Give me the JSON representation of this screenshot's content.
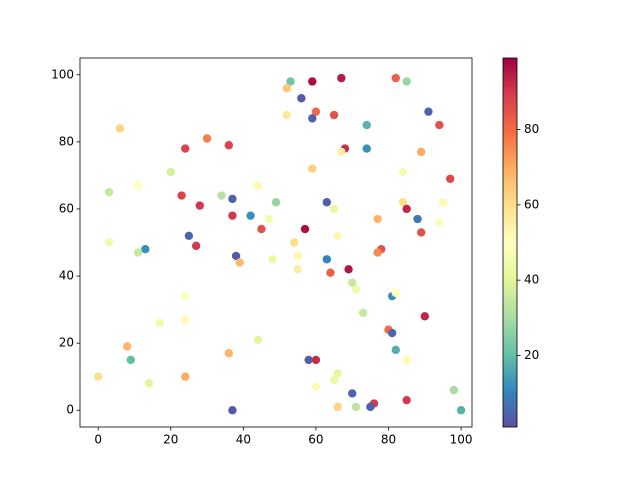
{
  "chart_data": {
    "type": "scatter",
    "colormap": "Spectral_r",
    "x": [
      53,
      59,
      67,
      82,
      85,
      52,
      56,
      60,
      65,
      59,
      52,
      91,
      94,
      74,
      6,
      30,
      24,
      36,
      68,
      67,
      74,
      89,
      59,
      84,
      20,
      11,
      44,
      3,
      97,
      23,
      34,
      37,
      49,
      63,
      84,
      95,
      28,
      65,
      85,
      37,
      42,
      47,
      77,
      88,
      94,
      45,
      57,
      89,
      25,
      3,
      54,
      27,
      13,
      11,
      78,
      77,
      55,
      38,
      48,
      63,
      66,
      39,
      69,
      64,
      55,
      70,
      71,
      81,
      24,
      82,
      73,
      90,
      24,
      17,
      80,
      81,
      44,
      8,
      82,
      36,
      9,
      58,
      60,
      85,
      66,
      0,
      24,
      65,
      14,
      60,
      98,
      70,
      85,
      76,
      75,
      66,
      71,
      37,
      100
    ],
    "y": [
      98,
      98,
      99,
      99,
      98,
      96,
      93,
      89,
      88,
      87,
      88,
      89,
      85,
      85,
      84,
      81,
      78,
      79,
      78,
      77,
      78,
      77,
      72,
      71,
      71,
      67,
      67,
      65,
      69,
      64,
      64,
      63,
      62,
      62,
      62,
      62,
      61,
      60,
      60,
      58,
      58,
      57,
      57,
      57,
      56,
      54,
      54,
      53,
      52,
      50,
      50,
      49,
      48,
      47,
      48,
      47,
      46,
      46,
      45,
      45,
      52,
      44,
      42,
      41,
      42,
      38,
      36,
      34,
      34,
      35,
      29,
      28,
      27,
      26,
      24,
      23,
      21,
      19,
      18,
      17,
      15,
      15,
      15,
      15,
      11,
      10,
      10,
      9,
      8,
      7,
      6,
      5,
      3,
      2,
      1,
      1,
      1,
      0,
      0
    ],
    "c": [
      22,
      97,
      95,
      82,
      28,
      65,
      3,
      80,
      85,
      4,
      57,
      5,
      85,
      18,
      62,
      77,
      88,
      88,
      92,
      55,
      12,
      70,
      63,
      47,
      38,
      50,
      52,
      35,
      87,
      88,
      32,
      4,
      28,
      4,
      60,
      52,
      90,
      42,
      93,
      90,
      12,
      45,
      68,
      8,
      48,
      85,
      97,
      85,
      5,
      45,
      60,
      90,
      12,
      35,
      85,
      75,
      53,
      3,
      43,
      10,
      53,
      67,
      96,
      82,
      56,
      35,
      45,
      12,
      50,
      50,
      35,
      93,
      52,
      45,
      80,
      5,
      40,
      68,
      17,
      68,
      20,
      4,
      92,
      52,
      42,
      60,
      70,
      43,
      40,
      52,
      30,
      5,
      90,
      90,
      4,
      62,
      33,
      3,
      18
    ],
    "xlim": [
      -5,
      103
    ],
    "ylim": [
      -5,
      105
    ],
    "xticks": [
      0,
      20,
      40,
      60,
      80,
      100
    ],
    "yticks": [
      0,
      20,
      40,
      60,
      80,
      100
    ],
    "clim": [
      1,
      99
    ],
    "cticks": [
      20,
      40,
      60,
      80
    ]
  }
}
